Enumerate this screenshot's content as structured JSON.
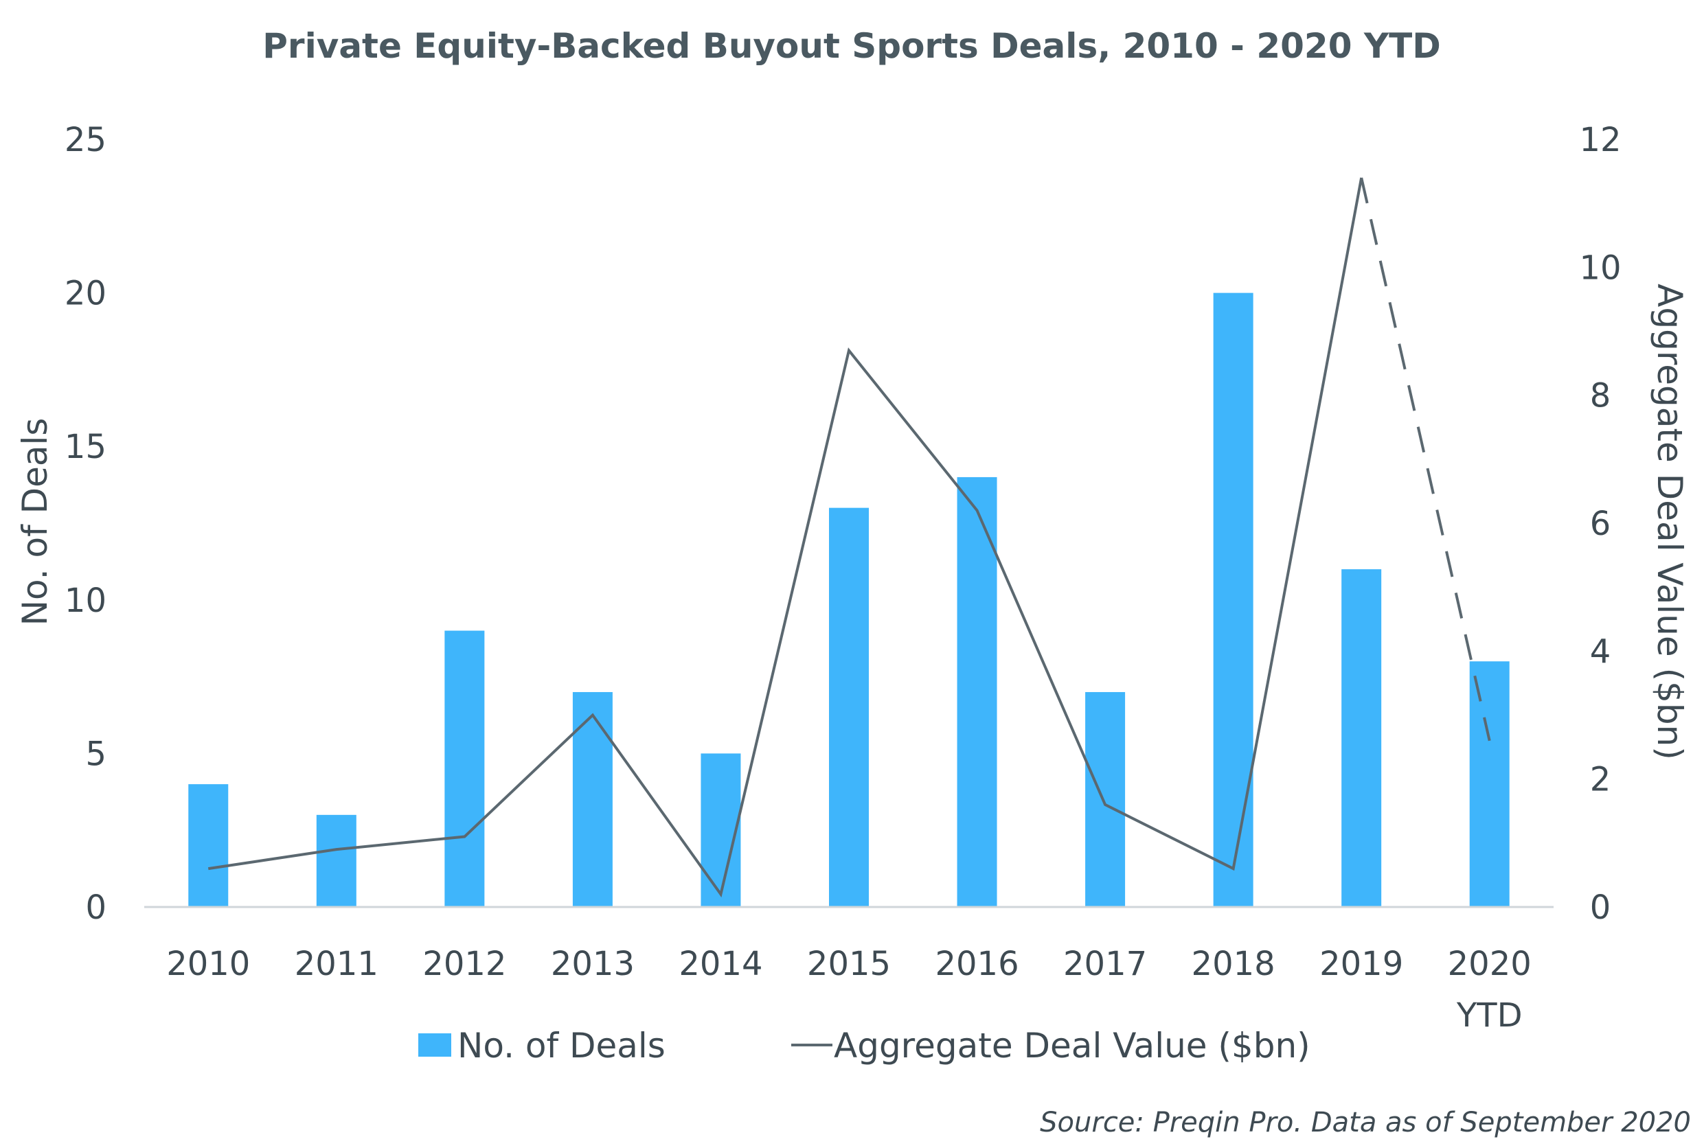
{
  "chart_data": {
    "type": "bar",
    "title": "Private Equity-Backed Buyout Sports Deals, 2010 - 2020 YTD",
    "categories": [
      [
        "2010"
      ],
      [
        "2011"
      ],
      [
        "2012"
      ],
      [
        "2013"
      ],
      [
        "2014"
      ],
      [
        "2015"
      ],
      [
        "2016"
      ],
      [
        "2017"
      ],
      [
        "2018"
      ],
      [
        "2019"
      ],
      [
        "2020",
        "YTD"
      ]
    ],
    "series": [
      {
        "name": "No. of Deals",
        "type": "bar",
        "axis": "left",
        "color": "#3fb5fb",
        "values": [
          4,
          3,
          9,
          7,
          5,
          13,
          14,
          7,
          20,
          11,
          8
        ]
      },
      {
        "name": "Aggregate Deal Value ($bn)",
        "type": "line",
        "axis": "right",
        "color": "#5b6870",
        "values": [
          0.6,
          0.9,
          1.1,
          3.0,
          0.2,
          8.7,
          6.2,
          1.6,
          0.6,
          11.4,
          2.6
        ],
        "dashed_last_segment": true
      }
    ],
    "ylabel": "No. of Deals",
    "ylim": [
      0,
      25
    ],
    "yticks": [
      "0",
      "5",
      "10",
      "15",
      "20",
      "25"
    ],
    "y2label": "Aggregate Deal Value ($bn)",
    "y2lim": [
      0,
      12
    ],
    "y2ticks": [
      "0",
      "2",
      "4",
      "6",
      "8",
      "10",
      "12"
    ],
    "grid": false,
    "legend_position": "bottom-center",
    "source": "Source: Preqin Pro. Data as of September 2020"
  }
}
